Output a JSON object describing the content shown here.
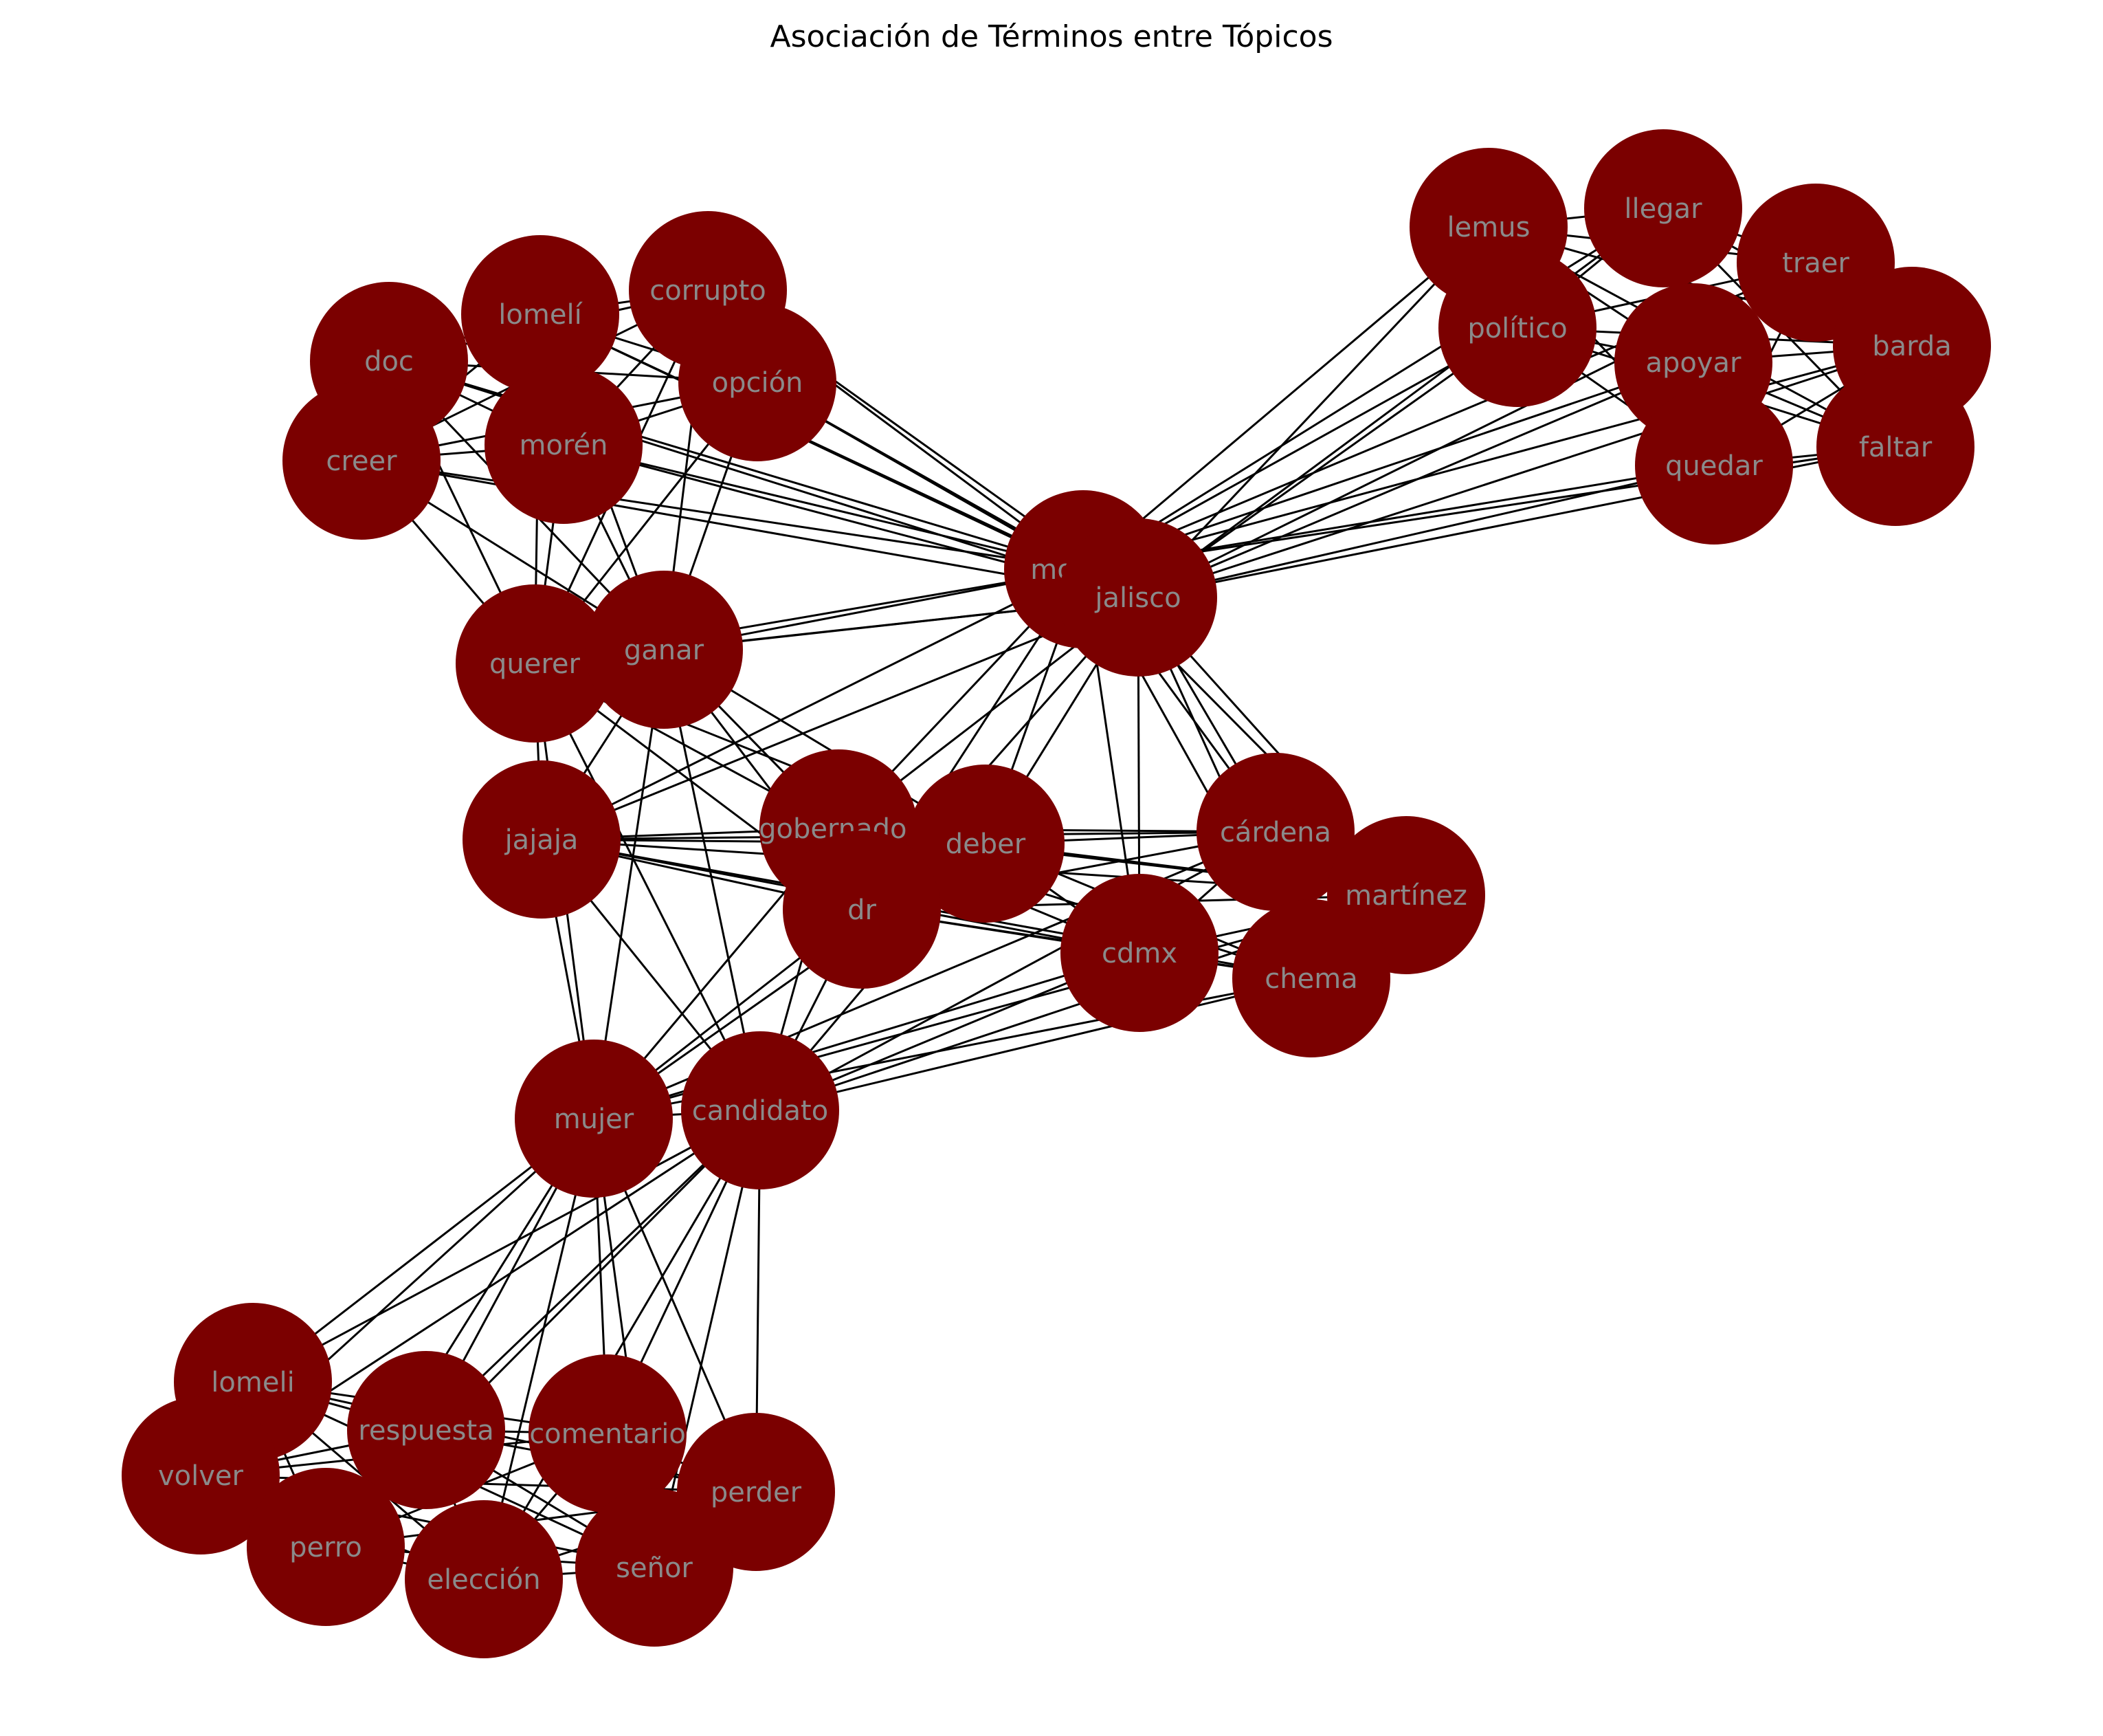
{
  "title": "Asociación de Términos entre Tópicos",
  "colors": {
    "node": "#7b0000",
    "label": "#8a8a8a",
    "edge": "#000000"
  },
  "nodes": [
    {
      "id": "doc",
      "label": "doc",
      "cluster": 1
    },
    {
      "id": "lomeli_acc",
      "label": "lomelí",
      "cluster": 1
    },
    {
      "id": "corrupto",
      "label": "corrupto",
      "cluster": 1
    },
    {
      "id": "opcion",
      "label": "opción",
      "cluster": 1
    },
    {
      "id": "creer",
      "label": "creer",
      "cluster": 1
    },
    {
      "id": "moren",
      "label": "morén",
      "cluster": 1
    },
    {
      "id": "querer",
      "label": "querer",
      "cluster": 1
    },
    {
      "id": "ganar",
      "label": "ganar",
      "cluster": 1
    },
    {
      "id": "lemus",
      "label": "lemus",
      "cluster": 2
    },
    {
      "id": "llegar",
      "label": "llegar",
      "cluster": 2
    },
    {
      "id": "traer",
      "label": "traer",
      "cluster": 2
    },
    {
      "id": "politico",
      "label": "político",
      "cluster": 2
    },
    {
      "id": "apoyar",
      "label": "apoyar",
      "cluster": 2
    },
    {
      "id": "barda",
      "label": "barda",
      "cluster": 2
    },
    {
      "id": "quedar",
      "label": "quedar",
      "cluster": 2
    },
    {
      "id": "faltar",
      "label": "faltar",
      "cluster": 2
    },
    {
      "id": "morena",
      "label": "morena",
      "cluster": 0
    },
    {
      "id": "jalisco",
      "label": "jalisco",
      "cluster": 0
    },
    {
      "id": "jajaja",
      "label": "jajaja",
      "cluster": 3
    },
    {
      "id": "gobernador",
      "label": "gobernador",
      "cluster": 3
    },
    {
      "id": "deber",
      "label": "deber",
      "cluster": 3
    },
    {
      "id": "dr",
      "label": "dr",
      "cluster": 3
    },
    {
      "id": "cardena",
      "label": "cárdena",
      "cluster": 3
    },
    {
      "id": "martinez",
      "label": "martínez",
      "cluster": 3
    },
    {
      "id": "cdmx",
      "label": "cdmx",
      "cluster": 3
    },
    {
      "id": "chema",
      "label": "chema",
      "cluster": 3
    },
    {
      "id": "mujer",
      "label": "mujer",
      "cluster": 4
    },
    {
      "id": "candidato",
      "label": "candidato",
      "cluster": 4
    },
    {
      "id": "lomeli",
      "label": "lomeli",
      "cluster": 5
    },
    {
      "id": "respuesta",
      "label": "respuesta",
      "cluster": 5
    },
    {
      "id": "comentario",
      "label": "comentario",
      "cluster": 5
    },
    {
      "id": "volver",
      "label": "volver",
      "cluster": 5
    },
    {
      "id": "perder",
      "label": "perder",
      "cluster": 5
    },
    {
      "id": "perro",
      "label": "perro",
      "cluster": 5
    },
    {
      "id": "eleccion",
      "label": "elección",
      "cluster": 5
    },
    {
      "id": "senor",
      "label": "señor",
      "cluster": 5
    }
  ]
}
